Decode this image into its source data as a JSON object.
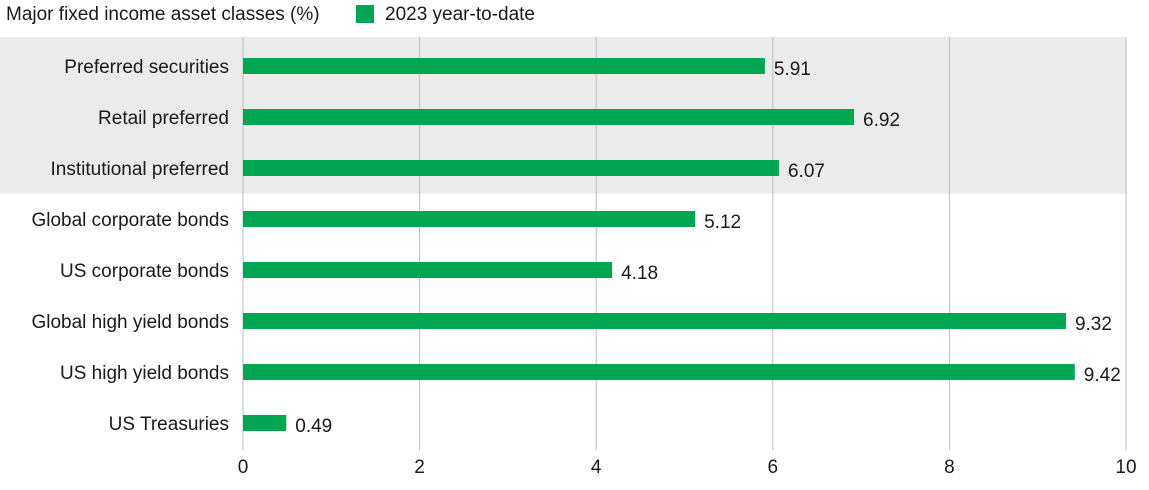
{
  "chart_data": {
    "type": "bar",
    "orientation": "horizontal",
    "title": "Major fixed income asset classes (%)",
    "categories": [
      "Preferred securities",
      "Retail preferred",
      "Institutional preferred",
      "Global corporate bonds",
      "US corporate bonds",
      "Global high yield bonds",
      "US high yield bonds",
      "US Treasuries"
    ],
    "series": [
      {
        "name": "2023 year-to-date",
        "values": [
          5.91,
          6.92,
          6.07,
          5.12,
          4.18,
          9.32,
          9.42,
          0.49
        ]
      }
    ],
    "value_labels": [
      "5.91",
      "6.92",
      "6.07",
      "5.12",
      "4.18",
      "9.32",
      "9.42",
      "0.49"
    ],
    "xlim": [
      0,
      10
    ],
    "xticks": [
      0,
      2,
      4,
      6,
      8,
      10
    ],
    "xtick_labels": [
      "0",
      "2",
      "4",
      "6",
      "8",
      "10"
    ],
    "grid": "vertical",
    "legend_position": "top",
    "highlighted_categories": [
      "Preferred securities",
      "Retail preferred",
      "Institutional preferred"
    ],
    "colors": {
      "bar": "#00a651",
      "highlight_band": "#ebebeb",
      "gridline": "#bdbdbd"
    }
  }
}
